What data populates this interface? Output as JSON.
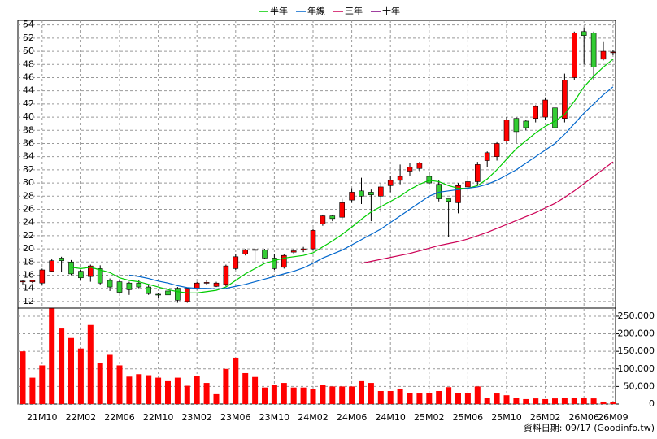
{
  "chart_data": [
    {
      "type": "candlestick",
      "categories": [
        null,
        null,
        "21M10",
        null,
        null,
        null,
        "22M02",
        null,
        null,
        null,
        "22M06",
        null,
        null,
        null,
        "22M10",
        null,
        null,
        null,
        "23M02",
        null,
        null,
        null,
        "23M06",
        null,
        null,
        null,
        "23M10",
        null,
        null,
        null,
        "24M02",
        null,
        null,
        null,
        "24M06",
        null,
        null,
        null,
        "24M10",
        null,
        null,
        null,
        "25M02",
        null,
        null,
        null,
        "25M06",
        null,
        null,
        null,
        "25M10",
        null,
        null,
        null,
        "26M02",
        null,
        null,
        null,
        "26M06",
        null,
        null,
        "26M09"
      ],
      "open": [
        15,
        15,
        14.8,
        16.6,
        18.6,
        18,
        16.6,
        15.8,
        17,
        15.2,
        15,
        14.8,
        14.8,
        14.2,
        13.1,
        13.6,
        14,
        12,
        14,
        14.8,
        14.3,
        14.6,
        17,
        19.2,
        19.8,
        19.8,
        18.6,
        17.2,
        19.5,
        19.8,
        20,
        23.8,
        25,
        24.8,
        27.4,
        28.8,
        28.6,
        28,
        29.6,
        30.4,
        31.8,
        32.2,
        31,
        29.8,
        27.6,
        27,
        29.4,
        30.2,
        33.4,
        34,
        36.4,
        39.8,
        39.4,
        39.8,
        40,
        41.4,
        39.8,
        46,
        53,
        52.8,
        48.8,
        49.8
      ],
      "high": [
        15.3,
        15.3,
        17,
        18.5,
        18.8,
        18.3,
        16.8,
        17.6,
        17.5,
        15.5,
        15.3,
        15,
        15.3,
        14.6,
        13.3,
        14,
        14.2,
        14.1,
        15,
        15.2,
        15,
        17.6,
        19.2,
        20,
        20,
        20,
        19.2,
        19.2,
        20,
        20.3,
        23,
        25.2,
        25.2,
        27.6,
        29.2,
        30.8,
        29,
        30,
        31,
        32.8,
        33,
        33.2,
        31.6,
        30.4,
        27.6,
        30,
        31,
        33.2,
        34.8,
        36.2,
        40,
        40,
        39.6,
        41.8,
        43,
        42.6,
        46.6,
        53,
        53.6,
        53,
        51.4,
        50.2
      ],
      "low": [
        14.5,
        14.8,
        14.5,
        16.5,
        16.5,
        16,
        15.2,
        15,
        14.6,
        13.6,
        13.2,
        13,
        14,
        13,
        12.6,
        12.6,
        11.8,
        11.8,
        13.8,
        14.5,
        14.2,
        14.3,
        16.8,
        19,
        17.8,
        18.5,
        16.8,
        17,
        19.2,
        19.5,
        19.8,
        23.5,
        24.2,
        24.5,
        27,
        26.8,
        24.2,
        25.6,
        28.6,
        29.8,
        31,
        31.8,
        29.8,
        27.2,
        21.8,
        25.4,
        28.8,
        29.6,
        32.4,
        33.4,
        36,
        36,
        38,
        39.2,
        39.6,
        37.6,
        39.2,
        45.6,
        48,
        45.6,
        48.6,
        49.4
      ],
      "close": [
        15.1,
        15.2,
        16.8,
        18.2,
        18.2,
        16.2,
        15.6,
        17.4,
        14.8,
        14.2,
        13.4,
        13.8,
        14.2,
        13.2,
        13,
        13,
        12.2,
        14,
        14.8,
        14.9,
        14.8,
        17.4,
        18.8,
        19.8,
        19.9,
        18.6,
        17,
        19,
        19.7,
        20,
        22.8,
        25,
        24.6,
        27,
        28.6,
        28,
        28.2,
        29.4,
        30.4,
        31,
        32.4,
        33,
        30,
        27.6,
        27.2,
        29.6,
        30.2,
        32.8,
        34.6,
        36,
        39.6,
        37.8,
        38.4,
        41.6,
        42.6,
        38.4,
        45.6,
        52.8,
        52.4,
        47.6,
        50,
        49.9
      ],
      "up_color": "#ff0000",
      "down_color": "#33cc33",
      "series": [
        {
          "name": "半年",
          "color": "#00cc00",
          "values": [
            null,
            null,
            null,
            null,
            null,
            17.2,
            17.0,
            17.2,
            16.8,
            16.4,
            15.6,
            15.2,
            15.0,
            14.6,
            14.2,
            13.8,
            13.5,
            13.3,
            13.3,
            13.5,
            13.7,
            14.2,
            15.2,
            16.2,
            17.0,
            17.8,
            18.2,
            18.6,
            18.8,
            19.0,
            19.4,
            20.3,
            21.2,
            22.2,
            23.3,
            24.5,
            25.6,
            26.4,
            27.2,
            28.0,
            29.0,
            29.8,
            30.4,
            30.2,
            29.6,
            29.2,
            29.2,
            29.6,
            30.6,
            32.0,
            33.6,
            35.2,
            36.4,
            37.6,
            38.6,
            39.4,
            40.4,
            42.4,
            44.6,
            46.2,
            47.6,
            48.8
          ]
        },
        {
          "name": "年線",
          "color": "#0066cc",
          "values": [
            null,
            null,
            null,
            null,
            null,
            null,
            null,
            null,
            null,
            null,
            null,
            16.0,
            15.8,
            15.5,
            15.1,
            14.8,
            14.4,
            14.1,
            14.0,
            14.0,
            13.9,
            14.0,
            14.3,
            14.6,
            15.0,
            15.4,
            15.8,
            16.2,
            16.6,
            17.1,
            17.8,
            18.6,
            19.2,
            19.8,
            20.6,
            21.4,
            22.2,
            23.0,
            24.0,
            25.0,
            26.0,
            27.0,
            28.0,
            28.6,
            28.8,
            29.0,
            29.2,
            29.4,
            29.8,
            30.4,
            31.2,
            32.0,
            33.0,
            34.0,
            35.0,
            36.0,
            37.4,
            39.0,
            40.6,
            42.0,
            43.4,
            44.6
          ]
        },
        {
          "name": "三年",
          "color": "#cc0055",
          "values": [
            null,
            null,
            null,
            null,
            null,
            null,
            null,
            null,
            null,
            null,
            null,
            null,
            null,
            null,
            null,
            null,
            null,
            null,
            null,
            null,
            null,
            null,
            null,
            null,
            null,
            null,
            null,
            null,
            null,
            null,
            null,
            null,
            null,
            null,
            null,
            17.8,
            18.1,
            18.4,
            18.7,
            19.0,
            19.3,
            19.7,
            20.1,
            20.5,
            20.8,
            21.1,
            21.5,
            22.0,
            22.5,
            23.1,
            23.7,
            24.3,
            24.9,
            25.5,
            26.2,
            26.9,
            27.8,
            28.8,
            29.9,
            31.0,
            32.1,
            33.2
          ]
        },
        {
          "name": "十年",
          "color": "#800080"
        }
      ],
      "ylim": [
        11,
        54.7
      ],
      "yticks": [
        12,
        14,
        16,
        18,
        20,
        22,
        24,
        26,
        28,
        30,
        32,
        34,
        36,
        38,
        40,
        42,
        44,
        46,
        48,
        50,
        52,
        54
      ],
      "grid": true
    },
    {
      "type": "bar",
      "color": "#ff0000",
      "values": [
        150000,
        75000,
        110000,
        272000,
        215000,
        188000,
        158000,
        225000,
        118000,
        140000,
        110000,
        78000,
        85000,
        82000,
        75000,
        65000,
        75000,
        52000,
        80000,
        60000,
        28000,
        100000,
        132000,
        88000,
        77000,
        47000,
        55000,
        60000,
        47000,
        47000,
        43000,
        55000,
        50000,
        50000,
        50000,
        65000,
        60000,
        37000,
        37000,
        44000,
        32000,
        30000,
        32000,
        37000,
        48000,
        32000,
        32000,
        50000,
        18000,
        30000,
        25000,
        18000,
        14000,
        16000,
        14000,
        16000,
        18000,
        18000,
        18000,
        16000,
        7000,
        5000
      ],
      "ylim": [
        0,
        273000
      ],
      "yticks": [
        0,
        {
          "value": 50000,
          "label": "50,000"
        },
        {
          "value": 100000,
          "label": "100,000"
        },
        {
          "value": 150000,
          "label": "150,000"
        },
        {
          "value": 200000,
          "label": "200,000"
        },
        {
          "value": 250000,
          "label": "250,000"
        }
      ],
      "grid": true,
      "footer": "資料日期: 09/17  (Goodinfo.tw)"
    }
  ]
}
